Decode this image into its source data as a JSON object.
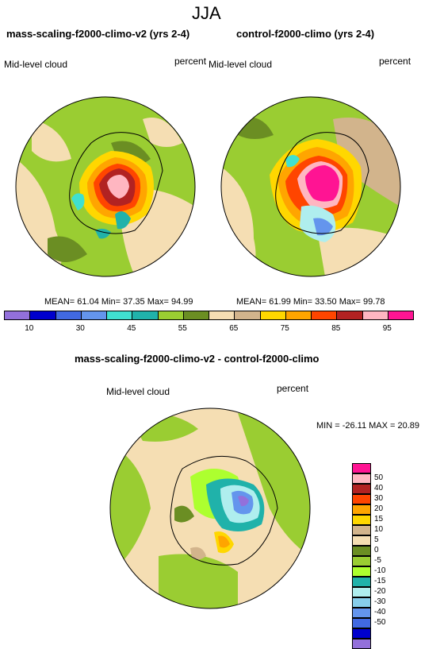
{
  "header": {
    "season": "JJA"
  },
  "panels": {
    "left": {
      "title": "mass-scaling-f2000-climo-v2 (yrs 2-4)",
      "variable": "Mid-level cloud",
      "units": "percent",
      "stats": {
        "mean_label": "MEAN=",
        "mean": "61.04",
        "min_label": "Min=",
        "min": "37.35",
        "max_label": "Max=",
        "max": "94.99"
      }
    },
    "right": {
      "title": "control-f2000-climo (yrs 2-4)",
      "variable": "Mid-level cloud",
      "units": "percent",
      "stats": {
        "mean_label": "MEAN=",
        "mean": "61.99",
        "min_label": "Min=",
        "min": "33.50",
        "max_label": "Max=",
        "max": "99.78"
      }
    },
    "diff": {
      "title": "mass-scaling-f2000-climo-v2 - control-f2000-climo",
      "variable": "Mid-level cloud",
      "units": "percent",
      "minmax": "MIN = -26.11  MAX =  20.89"
    }
  },
  "legend_top": {
    "colors": [
      "#9370db",
      "#0000cd",
      "#4169e1",
      "#6495ed",
      "#40e0d0",
      "#20b2aa",
      "#9acd32",
      "#6b8e23",
      "#f5deb3",
      "#d2b48c",
      "#ffd700",
      "#ffa500",
      "#ff4500",
      "#b22222",
      "#ffb6c1",
      "#ff1493"
    ],
    "labels": [
      "10",
      "30",
      "45",
      "55",
      "65",
      "75",
      "85",
      "95"
    ]
  },
  "legend_diff": {
    "colors": [
      "#ff1493",
      "#ffb6c1",
      "#b22222",
      "#ff4500",
      "#ffa500",
      "#ffd700",
      "#d2b48c",
      "#f5deb3",
      "#6b8e23",
      "#9acd32",
      "#adff2f",
      "#20b2aa",
      "#afeeee",
      "#87ceeb",
      "#6495ed",
      "#4169e1",
      "#0000cd",
      "#9370db"
    ],
    "labels": [
      "50",
      "40",
      "30",
      "20",
      "15",
      "10",
      "5",
      "0",
      "-5",
      "-10",
      "-15",
      "-20",
      "-30",
      "-40",
      "-50"
    ]
  }
}
